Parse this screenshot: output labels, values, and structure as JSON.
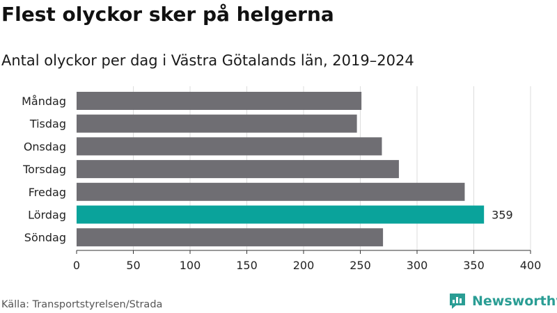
{
  "title": "Flest olyckor sker på helgerna",
  "subtitle": "Antal olyckor per dag i Västra Götalands län, 2019–2024",
  "source": "Källa: Transportstyrelsen/Strada",
  "brand": {
    "name": "Newsworthy",
    "icon": "newsworthy-bar-chart-logo-icon"
  },
  "colors": {
    "bar": "#6f6e73",
    "highlight": "#0aa39b",
    "grid": "#dcdcdc",
    "axis": "#333333"
  },
  "chart_data": {
    "type": "bar",
    "orientation": "horizontal",
    "categories": [
      "Måndag",
      "Tisdag",
      "Onsdag",
      "Torsdag",
      "Fredag",
      "Lördag",
      "Söndag"
    ],
    "values": [
      251,
      247,
      269,
      284,
      342,
      359,
      270
    ],
    "highlight_index": 5,
    "data_labels": [
      {
        "index": 5,
        "text": "359"
      }
    ],
    "xlim": [
      0,
      400
    ],
    "xticks": [
      "0",
      "50",
      "100",
      "150",
      "200",
      "250",
      "300",
      "350",
      "400"
    ],
    "grid": "vertical"
  }
}
